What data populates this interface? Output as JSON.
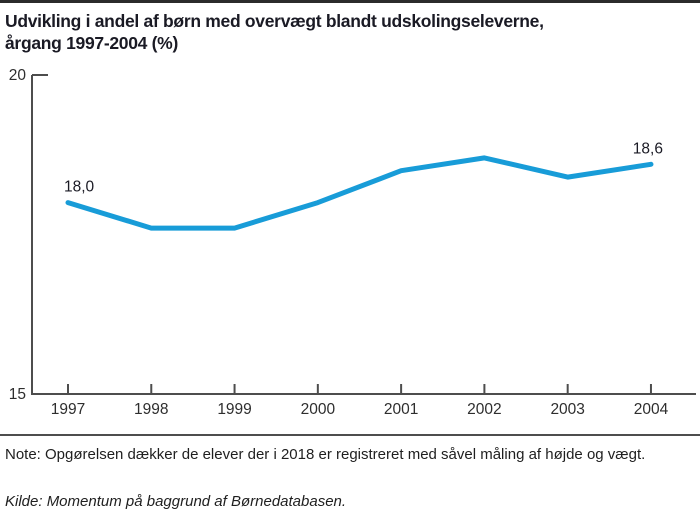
{
  "title": {
    "line1": "Udvikling i andel af børn med overvægt blandt udskolingseleverne,",
    "line2": "årgang 1997-2004 (%)"
  },
  "chart_data": {
    "type": "line",
    "categories": [
      "1997",
      "1998",
      "1999",
      "2000",
      "2001",
      "2002",
      "2003",
      "2004"
    ],
    "series": [
      {
        "name": "Andel af børn med overvægt (%)",
        "values": [
          18.0,
          17.6,
          17.6,
          18.0,
          18.5,
          18.7,
          18.4,
          18.6
        ]
      }
    ],
    "ylim": [
      15,
      20
    ],
    "yticks": [
      "20",
      "15"
    ],
    "ytick_values": [
      20,
      15
    ],
    "grid": false,
    "legend_position": "none",
    "line_color": "#189cd8",
    "axis_color": "#4d4d4d",
    "label_color": "#1a1a24",
    "annotations": [
      {
        "index": 0,
        "label": "18,0"
      },
      {
        "index": 7,
        "label": "18,6"
      }
    ]
  },
  "footer": {
    "note": "Note: Opgørelsen dækker de elever der i 2018 er registreret med såvel måling af højde og vægt.",
    "source": "Kilde: Momentum på baggrund af Børnedatabasen."
  }
}
